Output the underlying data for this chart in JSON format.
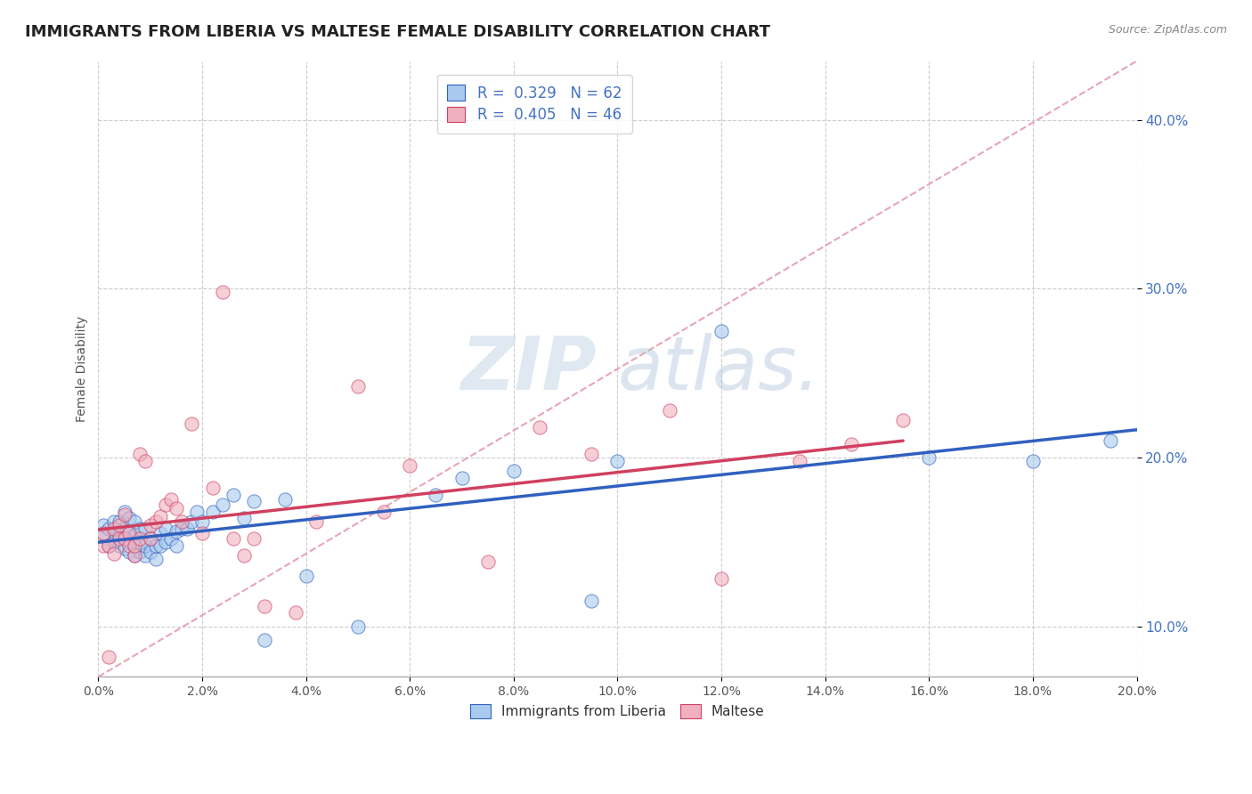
{
  "title": "IMMIGRANTS FROM LIBERIA VS MALTESE FEMALE DISABILITY CORRELATION CHART",
  "source": "Source: ZipAtlas.com",
  "ylabel": "Female Disability",
  "xlim": [
    0.0,
    0.2
  ],
  "ylim": [
    0.07,
    0.435
  ],
  "xticks": [
    0.0,
    0.02,
    0.04,
    0.06,
    0.08,
    0.1,
    0.12,
    0.14,
    0.16,
    0.18,
    0.2
  ],
  "ytick_vals": [
    0.1,
    0.2,
    0.3,
    0.4
  ],
  "ytick_labels": [
    "10.0%",
    "20.0%",
    "30.0%",
    "40.0%"
  ],
  "blue_color": "#A8CAEE",
  "pink_color": "#F0B0C0",
  "blue_line_color": "#3060C0",
  "pink_line_color": "#D04060",
  "diag_color": "#E090A0",
  "legend_r_blue": "R =  0.329",
  "legend_n_blue": "N = 62",
  "legend_r_pink": "R =  0.405",
  "legend_n_pink": "N = 46",
  "legend_bottom_blue": "Immigrants from Liberia",
  "legend_bottom_pink": "Maltese",
  "watermark_zip": "ZIP",
  "watermark_atlas": "atlas.",
  "blue_scatter_x": [
    0.001,
    0.001,
    0.002,
    0.002,
    0.003,
    0.003,
    0.003,
    0.004,
    0.004,
    0.004,
    0.005,
    0.005,
    0.005,
    0.005,
    0.006,
    0.006,
    0.006,
    0.006,
    0.007,
    0.007,
    0.007,
    0.007,
    0.008,
    0.008,
    0.008,
    0.009,
    0.009,
    0.009,
    0.01,
    0.01,
    0.011,
    0.011,
    0.012,
    0.012,
    0.013,
    0.013,
    0.014,
    0.015,
    0.015,
    0.016,
    0.017,
    0.018,
    0.019,
    0.02,
    0.022,
    0.024,
    0.026,
    0.028,
    0.03,
    0.032,
    0.036,
    0.04,
    0.05,
    0.065,
    0.07,
    0.08,
    0.095,
    0.1,
    0.12,
    0.16,
    0.18,
    0.195
  ],
  "blue_scatter_y": [
    0.155,
    0.16,
    0.148,
    0.158,
    0.15,
    0.156,
    0.162,
    0.148,
    0.154,
    0.162,
    0.146,
    0.152,
    0.158,
    0.168,
    0.144,
    0.15,
    0.156,
    0.164,
    0.142,
    0.148,
    0.154,
    0.162,
    0.144,
    0.15,
    0.158,
    0.142,
    0.148,
    0.158,
    0.144,
    0.152,
    0.14,
    0.148,
    0.148,
    0.155,
    0.15,
    0.158,
    0.152,
    0.148,
    0.156,
    0.158,
    0.158,
    0.162,
    0.168,
    0.162,
    0.168,
    0.172,
    0.178,
    0.164,
    0.174,
    0.092,
    0.175,
    0.13,
    0.1,
    0.178,
    0.188,
    0.192,
    0.115,
    0.198,
    0.275,
    0.2,
    0.198,
    0.21
  ],
  "pink_scatter_x": [
    0.001,
    0.001,
    0.002,
    0.002,
    0.003,
    0.003,
    0.004,
    0.004,
    0.005,
    0.005,
    0.006,
    0.006,
    0.007,
    0.007,
    0.008,
    0.008,
    0.009,
    0.01,
    0.01,
    0.011,
    0.012,
    0.013,
    0.014,
    0.015,
    0.016,
    0.018,
    0.02,
    0.022,
    0.024,
    0.026,
    0.028,
    0.03,
    0.032,
    0.038,
    0.042,
    0.05,
    0.055,
    0.06,
    0.075,
    0.085,
    0.095,
    0.11,
    0.12,
    0.135,
    0.145,
    0.155
  ],
  "pink_scatter_y": [
    0.148,
    0.155,
    0.082,
    0.148,
    0.143,
    0.158,
    0.152,
    0.16,
    0.152,
    0.166,
    0.148,
    0.155,
    0.142,
    0.148,
    0.152,
    0.202,
    0.198,
    0.152,
    0.16,
    0.162,
    0.165,
    0.172,
    0.175,
    0.17,
    0.162,
    0.22,
    0.155,
    0.182,
    0.298,
    0.152,
    0.142,
    0.152,
    0.112,
    0.108,
    0.162,
    0.242,
    0.168,
    0.195,
    0.138,
    0.218,
    0.202,
    0.228,
    0.128,
    0.198,
    0.208,
    0.222
  ]
}
